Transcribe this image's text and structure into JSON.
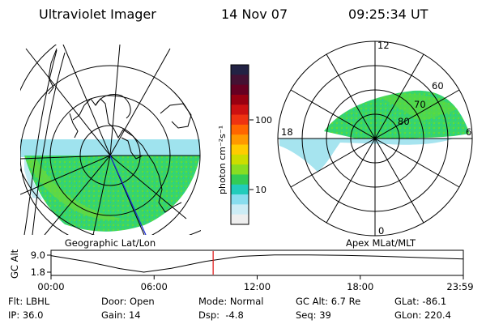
{
  "header": {
    "instrument": "Ultraviolet Imager",
    "date": "14 Nov 07",
    "time": "09:25:34 UT"
  },
  "geo_panel": {
    "label": "Geographic Lat/Lon"
  },
  "mag_panel": {
    "label": "Apex MLat/MLT",
    "mlt_labels": [
      "12",
      "6",
      "0",
      "18"
    ],
    "lat_labels": [
      "60",
      "70",
      "80"
    ]
  },
  "colorbar": {
    "unit_label": "photon cm⁻²s⁻¹",
    "ticks": [
      "100",
      "10"
    ],
    "colors": [
      "#222244",
      "#441133",
      "#660022",
      "#990011",
      "#cc1111",
      "#ee3311",
      "#ff6600",
      "#ff9900",
      "#ffcc00",
      "#ccdd00",
      "#88dd22",
      "#33cc55",
      "#22ccbb",
      "#88ddee",
      "#ccecf5",
      "#eeeeee"
    ]
  },
  "altitude_plot": {
    "ylabel": "GC Alt",
    "yticks": [
      "9.0",
      "1.8"
    ],
    "xticks": [
      "00:00",
      "06:00",
      "12:00",
      "18:00",
      "23:59"
    ],
    "current_time_hours": 9.43
  },
  "info": {
    "filter_label": "Flt:",
    "filter_value": "LBHL",
    "ip_label": "IP:",
    "ip_value": "36.0",
    "door_label": "Door:",
    "door_value": "Open",
    "gain_label": "Gain:",
    "gain_value": "14",
    "mode_label": "Mode:",
    "mode_value": "Normal",
    "dsp_label": "Dsp:",
    "dsp_value": "-4.8",
    "gcalt_label": "GC Alt:",
    "gcalt_value": "6.7 Re",
    "seq_label": "Seq:",
    "seq_value": "39",
    "glat_label": "GLat:",
    "glat_value": "-86.1",
    "glon_label": "GLon:",
    "glon_value": "220.4"
  },
  "chart_data": {
    "type": "line",
    "title": "",
    "xlabel": "",
    "ylabel": "GC Alt",
    "x": [
      0,
      2,
      4,
      5.4,
      7,
      9,
      11,
      13,
      15,
      17,
      19,
      21,
      23.98
    ],
    "y": [
      8.8,
      6.4,
      3.3,
      1.8,
      3.4,
      6.4,
      8.5,
      9.1,
      9.1,
      8.9,
      8.6,
      8.1,
      7.4
    ],
    "xlim": [
      0,
      23.98
    ],
    "ylim": [
      1.8,
      9.0
    ]
  }
}
